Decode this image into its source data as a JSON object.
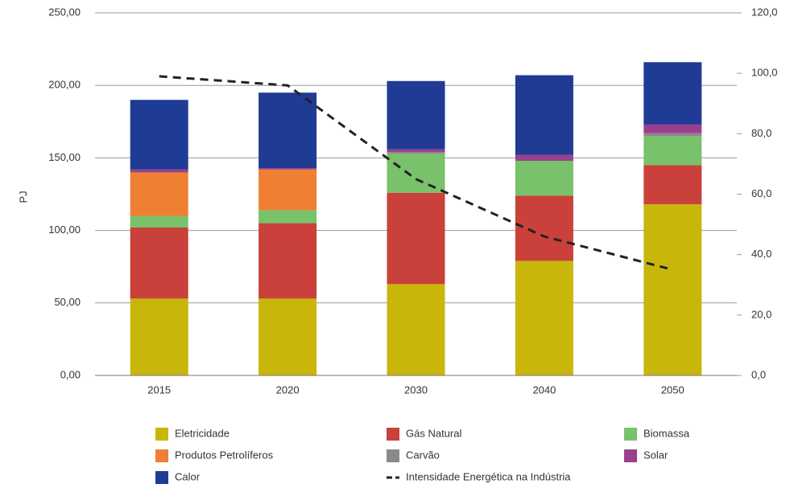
{
  "chart_data": {
    "type": "bar",
    "stacked": true,
    "ylabel": "PJ",
    "categories": [
      "2015",
      "2020",
      "2030",
      "2040",
      "2050"
    ],
    "series": [
      {
        "name": "Eletricidade",
        "color": "#c8b70a",
        "values": [
          53,
          53,
          63,
          79,
          118
        ]
      },
      {
        "name": "Gás Natural",
        "color": "#c9413a",
        "values": [
          49,
          52,
          63,
          45,
          27
        ]
      },
      {
        "name": "Biomassa",
        "color": "#79c16a",
        "values": [
          8,
          9,
          27,
          24,
          20
        ]
      },
      {
        "name": "Produtos Petrolíferos",
        "color": "#ef8033",
        "values": [
          30,
          28,
          0,
          0,
          0
        ]
      },
      {
        "name": "Carvão",
        "color": "#8a8a8a",
        "values": [
          0,
          0,
          1,
          0,
          2
        ]
      },
      {
        "name": "Solar",
        "color": "#9c3f8e",
        "values": [
          2,
          1,
          2,
          4,
          6
        ]
      },
      {
        "name": "Calor",
        "color": "#1f3b94",
        "values": [
          48,
          52,
          47,
          55,
          43
        ]
      },
      {
        "name": "Intensidade Energética na Indústria",
        "color": "#222222",
        "type": "line",
        "axis": "y2",
        "dashed": true,
        "values": [
          99,
          96,
          65,
          46,
          35
        ]
      }
    ],
    "ylim": [
      0,
      250
    ],
    "yticks": [
      {
        "value": 0,
        "label": "0,00"
      },
      {
        "value": 50,
        "label": "50,00"
      },
      {
        "value": 100,
        "label": "100,00"
      },
      {
        "value": 150,
        "label": "150,00"
      },
      {
        "value": 200,
        "label": "200,00"
      },
      {
        "value": 250,
        "label": "250,00"
      }
    ],
    "y2lim": [
      0,
      120
    ],
    "y2ticks": [
      {
        "value": 0,
        "label": "0,0"
      },
      {
        "value": 20,
        "label": "20,0"
      },
      {
        "value": 40,
        "label": "40,0"
      },
      {
        "value": 60,
        "label": "60,0"
      },
      {
        "value": 80,
        "label": "80,0"
      },
      {
        "value": 100,
        "label": "100,0"
      },
      {
        "value": 120,
        "label": "120,0"
      }
    ],
    "grid": true,
    "legend": "bottom"
  }
}
